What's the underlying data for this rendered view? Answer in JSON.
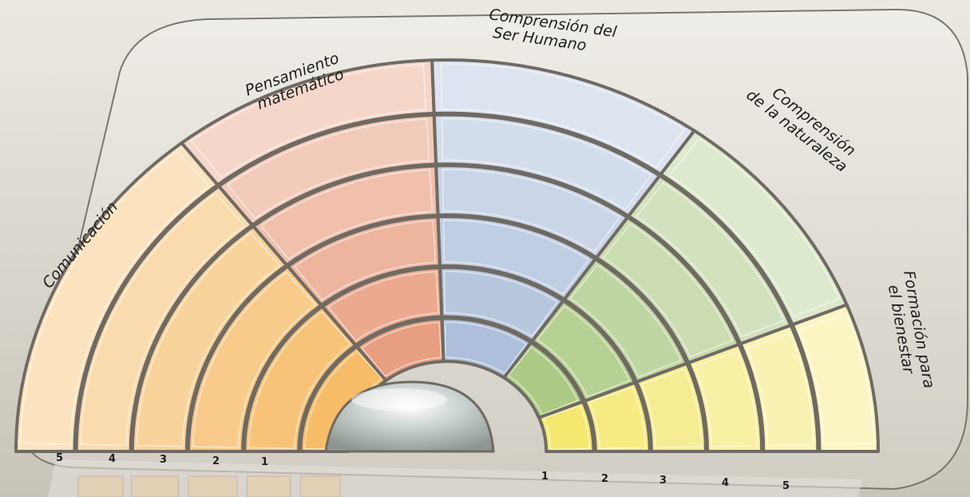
{
  "areas": [
    {
      "key": "comunicacion",
      "lines": [
        "Comunicación"
      ],
      "color": "#f6b860"
    },
    {
      "key": "pensamiento",
      "lines": [
        "Pensamiento",
        "matemático"
      ],
      "color": "#e79a7a"
    },
    {
      "key": "ser-humano",
      "lines": [
        "Comprensión del",
        "Ser Humano"
      ],
      "color": "#a9bcd8"
    },
    {
      "key": "naturaleza",
      "lines": [
        "Comprensión",
        "de la naturaleza"
      ],
      "color": "#a9c77f"
    },
    {
      "key": "bienestar",
      "lines": [
        "Formación para",
        "el bienestar"
      ],
      "color": "#f3e76a"
    }
  ],
  "levels": {
    "left": [
      "5",
      "4",
      "3",
      "2",
      "1"
    ],
    "right": [
      "1",
      "2",
      "3",
      "4",
      "5"
    ]
  }
}
